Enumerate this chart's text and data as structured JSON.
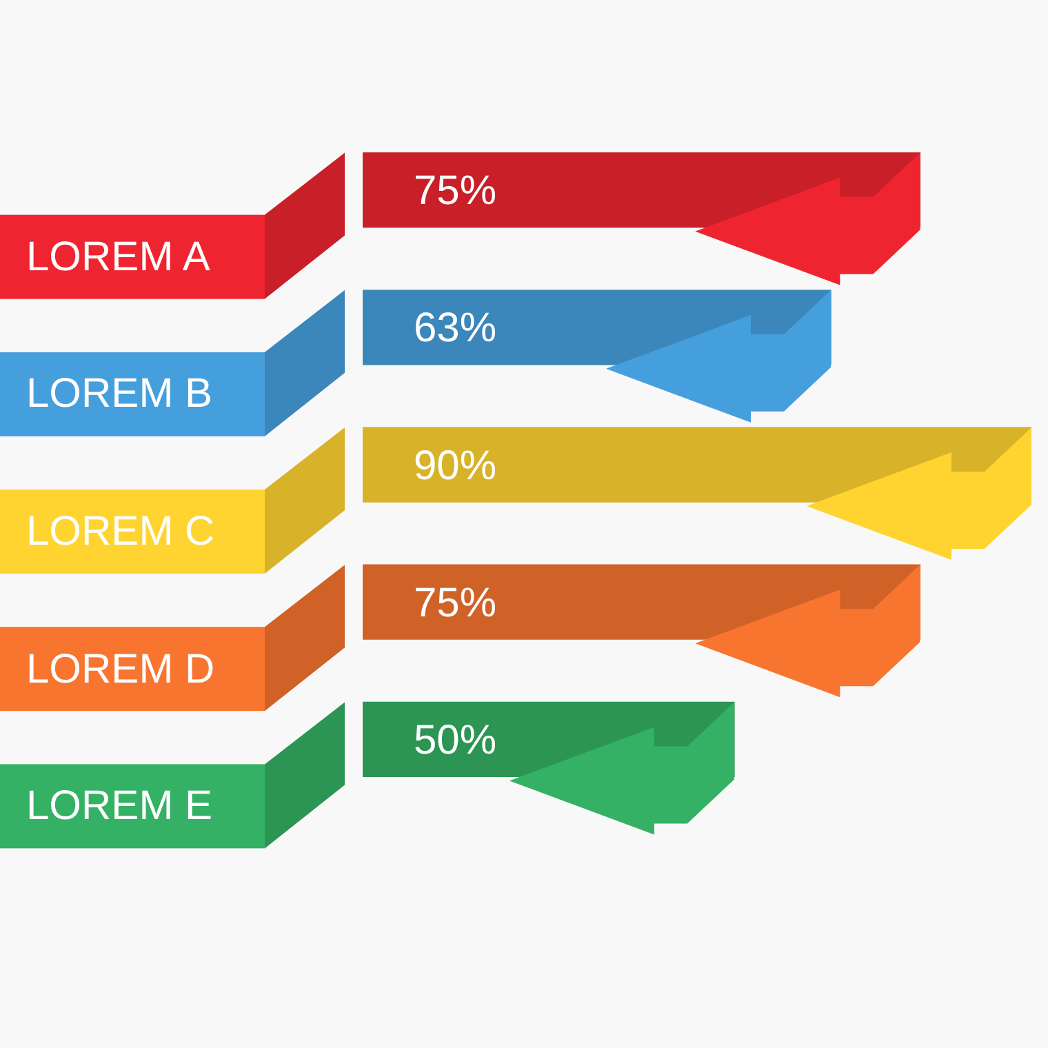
{
  "chart_data": {
    "type": "bar",
    "orientation": "horizontal",
    "categories": [
      "LOREM A",
      "LOREM B",
      "LOREM C",
      "LOREM D",
      "LOREM E"
    ],
    "values": [
      75,
      63,
      90,
      75,
      50
    ],
    "colors": [
      "#c81f28",
      "#3b86ba",
      "#d8b228",
      "#d06228",
      "#2c9554"
    ],
    "value_labels": [
      "75%",
      "63%",
      "90%",
      "75%",
      "50%"
    ],
    "tick_labels": "y"
  }
}
